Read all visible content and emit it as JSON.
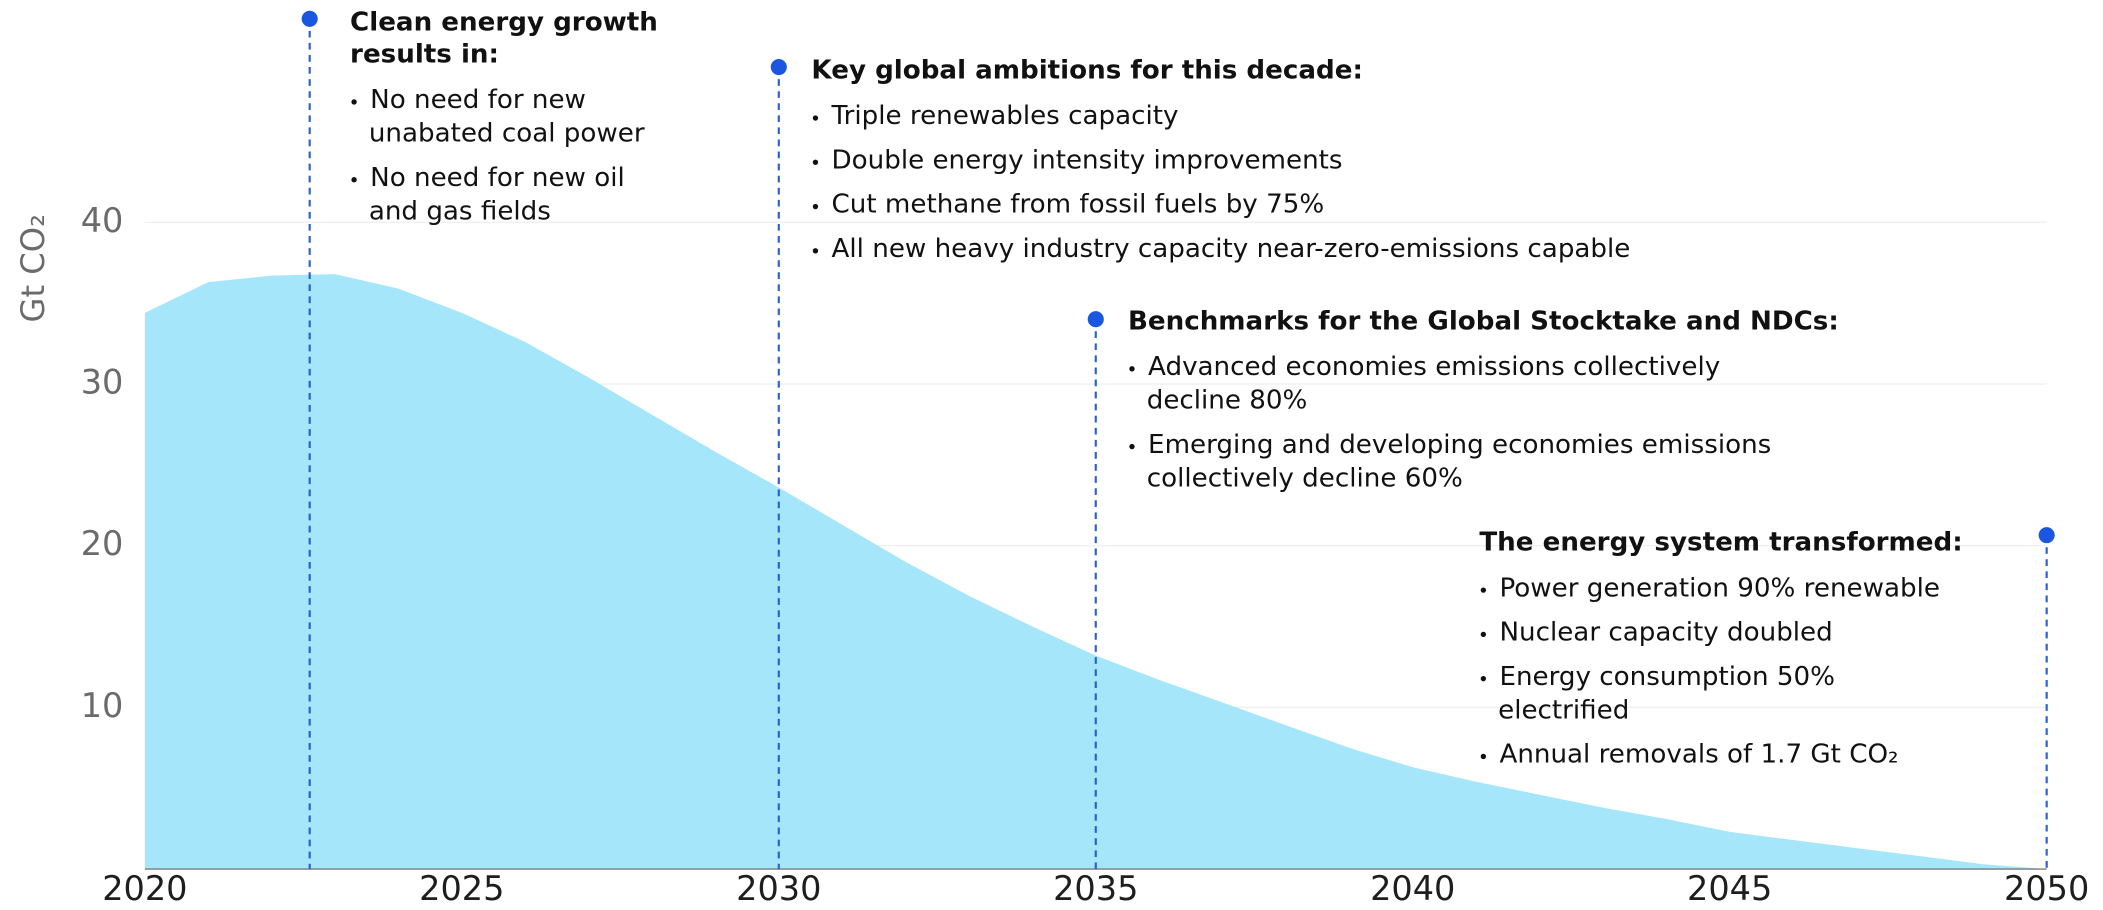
{
  "chart_data": {
    "type": "area",
    "y_label": "Gt CO₂",
    "x": [
      2020,
      2021,
      2022,
      2023,
      2024,
      2025,
      2026,
      2027,
      2028,
      2029,
      2030,
      2031,
      2032,
      2033,
      2034,
      2035,
      2036,
      2037,
      2038,
      2039,
      2040,
      2041,
      2042,
      2043,
      2044,
      2045,
      2046,
      2047,
      2048,
      2049,
      2050
    ],
    "values": [
      34.4,
      36.3,
      36.7,
      36.8,
      35.9,
      34.4,
      32.6,
      30.4,
      28.1,
      25.8,
      23.6,
      21.3,
      19.0,
      16.9,
      15.0,
      13.2,
      11.7,
      10.3,
      8.9,
      7.5,
      6.3,
      5.4,
      4.6,
      3.8,
      3.1,
      2.3,
      1.8,
      1.3,
      0.8,
      0.3,
      0
    ],
    "color": "#a6e6fa",
    "xlim": [
      2020,
      2050
    ],
    "xticks": [
      2020,
      2025,
      2030,
      2035,
      2040,
      2045,
      2050
    ],
    "ylim": [
      0,
      53.75
    ],
    "yticks": [
      10,
      20,
      30,
      40
    ],
    "grid": true,
    "annotations": [
      {
        "x": 2022.6,
        "heading": [
          "Clean energy growth",
          "results in:"
        ],
        "items": [
          [
            "No need for new",
            "unabated coal power"
          ],
          [
            "No need for new oil",
            "and gas fields"
          ]
        ]
      },
      {
        "x": 2030,
        "heading": [
          "Key global ambitions for this decade:"
        ],
        "items": [
          [
            "Triple renewables capacity"
          ],
          [
            "Double energy intensity improvements"
          ],
          [
            "Cut methane from fossil fuels by 75%"
          ],
          [
            "All new heavy industry capacity near-zero-emissions capable"
          ]
        ]
      },
      {
        "x": 2035,
        "heading": [
          "Benchmarks for the Global Stocktake and NDCs:"
        ],
        "items": [
          [
            "Advanced economies emissions collectively",
            "decline 80%"
          ],
          [
            "Emerging and developing economies emissions",
            "collectively decline 60%"
          ]
        ]
      },
      {
        "x": 2050,
        "heading": [
          "The energy system transformed:"
        ],
        "items": [
          [
            "Power generation 90% renewable"
          ],
          [
            "Nuclear capacity doubled"
          ],
          [
            "Energy consumption 50%",
            "electrified"
          ],
          [
            "Annual removals of 1.7 Gt CO₂"
          ]
        ]
      }
    ]
  }
}
